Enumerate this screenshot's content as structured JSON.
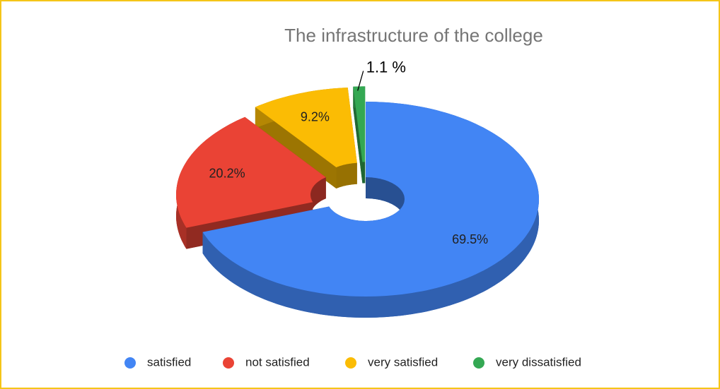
{
  "chart_data": {
    "type": "pie",
    "title": "The infrastructure of the college",
    "categories": [
      "satisfied",
      "not satisfied",
      "very satisfied",
      "very dissatisfied"
    ],
    "values": [
      69.5,
      20.2,
      9.2,
      1.1
    ],
    "value_labels": [
      "69.5%",
      "20.2%",
      "9.2%",
      "1.1 %"
    ],
    "colors": [
      "#4285f4",
      "#ea4335",
      "#fbbc04",
      "#34a853"
    ],
    "legend": "bottom",
    "donut": true,
    "three_d": true
  }
}
